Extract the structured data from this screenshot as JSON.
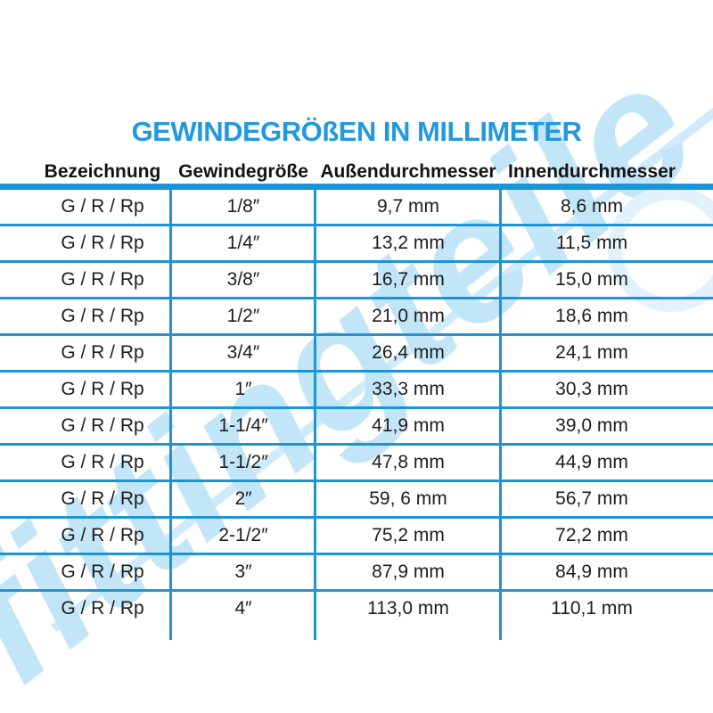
{
  "title": "GEWINDEGRÖßEN IN MILLIMETER",
  "watermark": "fittingteile",
  "colors": {
    "title_blue": "#2299dd",
    "line_blue": "#1b95d8",
    "watermark_blue": "#c3e5f8",
    "text_dark": "#1d1d1b"
  },
  "table": {
    "headers": [
      "Bezeichnung",
      "Gewindegröße",
      "Außendurchmesser",
      "Innendurchmesser"
    ],
    "rows": [
      [
        "G / R / Rp",
        "1/8″",
        "9,7 mm",
        "8,6 mm"
      ],
      [
        "G / R / Rp",
        "1/4″",
        "13,2 mm",
        "11,5 mm"
      ],
      [
        "G / R / Rp",
        "3/8″",
        "16,7 mm",
        "15,0 mm"
      ],
      [
        "G / R / Rp",
        "1/2″",
        "21,0 mm",
        "18,6 mm"
      ],
      [
        "G / R / Rp",
        "3/4″",
        "26,4 mm",
        "24,1 mm"
      ],
      [
        "G / R / Rp",
        "1″",
        "33,3 mm",
        "30,3 mm"
      ],
      [
        "G / R / Rp",
        "1-1/4″",
        "41,9 mm",
        "39,0 mm"
      ],
      [
        "G / R / Rp",
        "1-1/2″",
        "47,8 mm",
        "44,9 mm"
      ],
      [
        "G / R / Rp",
        "2″",
        "59, 6 mm",
        "56,7 mm"
      ],
      [
        "G / R / Rp",
        "2-1/2″",
        "75,2 mm",
        "72,2 mm"
      ],
      [
        "G / R / Rp",
        "3″",
        "87,9 mm",
        "84,9 mm"
      ],
      [
        "G / R / Rp",
        "4″",
        "113,0 mm",
        "110,1 mm"
      ]
    ]
  }
}
